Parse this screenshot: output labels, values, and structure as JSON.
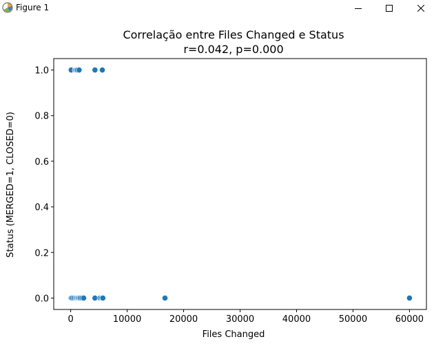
{
  "window": {
    "title": "Figure 1"
  },
  "chart_data": {
    "type": "scatter",
    "title": "Correlação entre Files Changed e Status",
    "subtitle": "r=0.042, p=0.000",
    "xlabel": "Files Changed",
    "ylabel": "Status (MERGED=1, CLOSED=0)",
    "xlim": [
      -3000,
      63000
    ],
    "ylim": [
      -0.05,
      1.05
    ],
    "xticks": [
      0,
      10000,
      20000,
      30000,
      40000,
      50000,
      60000
    ],
    "xtick_labels": [
      "0",
      "10000",
      "20000",
      "30000",
      "40000",
      "50000",
      "60000"
    ],
    "yticks": [
      0.0,
      0.2,
      0.4,
      0.6,
      0.8,
      1.0
    ],
    "ytick_labels": [
      "0.0",
      "0.2",
      "0.4",
      "0.6",
      "0.8",
      "1.0"
    ],
    "grid": false,
    "marker_color": "#1f77b4",
    "x": [
      0,
      100,
      800,
      1000,
      1200,
      1500,
      4300,
      5600,
      0,
      100,
      300,
      600,
      900,
      1100,
      1300,
      1500,
      1700,
      2000,
      2300,
      4300,
      5200,
      5500,
      5700,
      16700,
      60000
    ],
    "y": [
      1,
      1,
      1,
      1,
      1,
      1,
      1,
      1,
      0,
      0,
      0,
      0,
      0,
      0,
      0,
      0,
      0,
      0,
      0,
      0,
      0,
      0,
      0,
      0,
      0
    ]
  }
}
